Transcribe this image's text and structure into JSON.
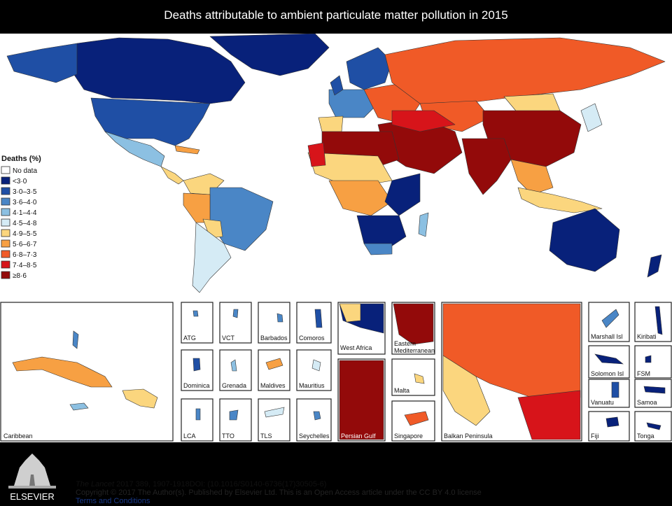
{
  "title": "Deaths attributable to ambient particulate matter pollution in 2015",
  "legend": {
    "title": "Deaths (%)",
    "items": [
      {
        "label": "No data",
        "color": "#ffffff"
      },
      {
        "label": "<3·0",
        "color": "#08217a"
      },
      {
        "label": "3·0–3·5",
        "color": "#1f4fa5"
      },
      {
        "label": "3·6–4·0",
        "color": "#4a86c6"
      },
      {
        "label": "4·1–4·4",
        "color": "#8cc0e2"
      },
      {
        "label": "4·5–4·8",
        "color": "#d5ebf5"
      },
      {
        "label": "4·9–5·5",
        "color": "#fbd67e"
      },
      {
        "label": "5·6–6·7",
        "color": "#f7a043"
      },
      {
        "label": "6·8–7·3",
        "color": "#f05a27"
      },
      {
        "label": "7·4–8·5",
        "color": "#d7141a"
      },
      {
        "label": "≥8·6",
        "color": "#930a0a"
      }
    ]
  },
  "insets": {
    "caribbean": "Caribbean",
    "atg": "ATG",
    "vct": "VCT",
    "barbados": "Barbados",
    "comoros": "Comoros",
    "dominica": "Dominica",
    "grenada": "Grenada",
    "maldives": "Maldives",
    "mauritius": "Mauritius",
    "lca": "LCA",
    "tto": "TTO",
    "tls": "TLS",
    "seychelles": "Seychelles",
    "west_africa": "West Africa",
    "eastern_med": "Eastern Mediterranean",
    "eastern_med_1": "Eastern",
    "eastern_med_2": "Mediterranean",
    "persian_gulf": "Persian Gulf",
    "malta": "Malta",
    "singapore": "Singapore",
    "balkan": "Balkan Peninsula",
    "marshall": "Marshall Isl",
    "kiribati": "Kiribati",
    "solomon": "Solomon Isl",
    "fsm": "FSM",
    "vanuatu": "Vanuatu",
    "samoa": "Samoa",
    "fiji": "Fiji",
    "tonga": "Tonga"
  },
  "publisher": {
    "logo_text": "ELSEVIER",
    "journal": "The Lancet",
    "citation": " 2017 389, 1907-1918DOI: (10.1016/S0140-6736(17)30505-6)",
    "copyright": "Copyright © 2017 The Author(s). Published by Elsevier Ltd. This is an Open Access article under the CC BY 4.0 license ",
    "terms_link": "Terms and Conditions"
  }
}
